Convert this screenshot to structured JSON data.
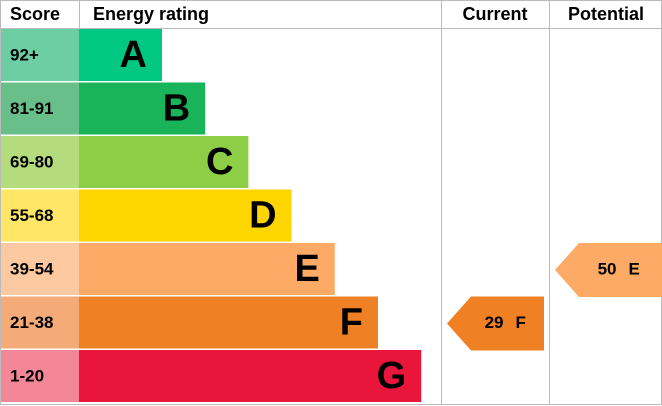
{
  "header": {
    "score": "Score",
    "rating": "Energy rating",
    "current": "Current",
    "potential": "Potential"
  },
  "bands": [
    {
      "score": "92+",
      "letter": "A"
    },
    {
      "score": "81-91",
      "letter": "B"
    },
    {
      "score": "69-80",
      "letter": "C"
    },
    {
      "score": "55-68",
      "letter": "D"
    },
    {
      "score": "39-54",
      "letter": "E"
    },
    {
      "score": "21-38",
      "letter": "F"
    },
    {
      "score": "1-20",
      "letter": "G"
    }
  ],
  "current": {
    "value": 29,
    "letter": "F"
  },
  "potential": {
    "value": 50,
    "letter": "E"
  }
}
